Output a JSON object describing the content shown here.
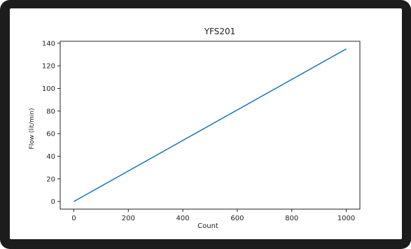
{
  "chart_data": {
    "type": "line",
    "title": "YFS201",
    "xlabel": "Count",
    "ylabel": "Flow (lit/min)",
    "xlim": [
      -50,
      1050
    ],
    "ylim": [
      -6.75,
      141.75
    ],
    "xticks": [
      0,
      200,
      400,
      600,
      800,
      1000
    ],
    "yticks": [
      0,
      20,
      40,
      60,
      80,
      100,
      120,
      140
    ],
    "grid": false,
    "series": [
      {
        "x": [
          0,
          1000
        ],
        "y": [
          0,
          135
        ],
        "color": "#1f77b4"
      }
    ]
  }
}
